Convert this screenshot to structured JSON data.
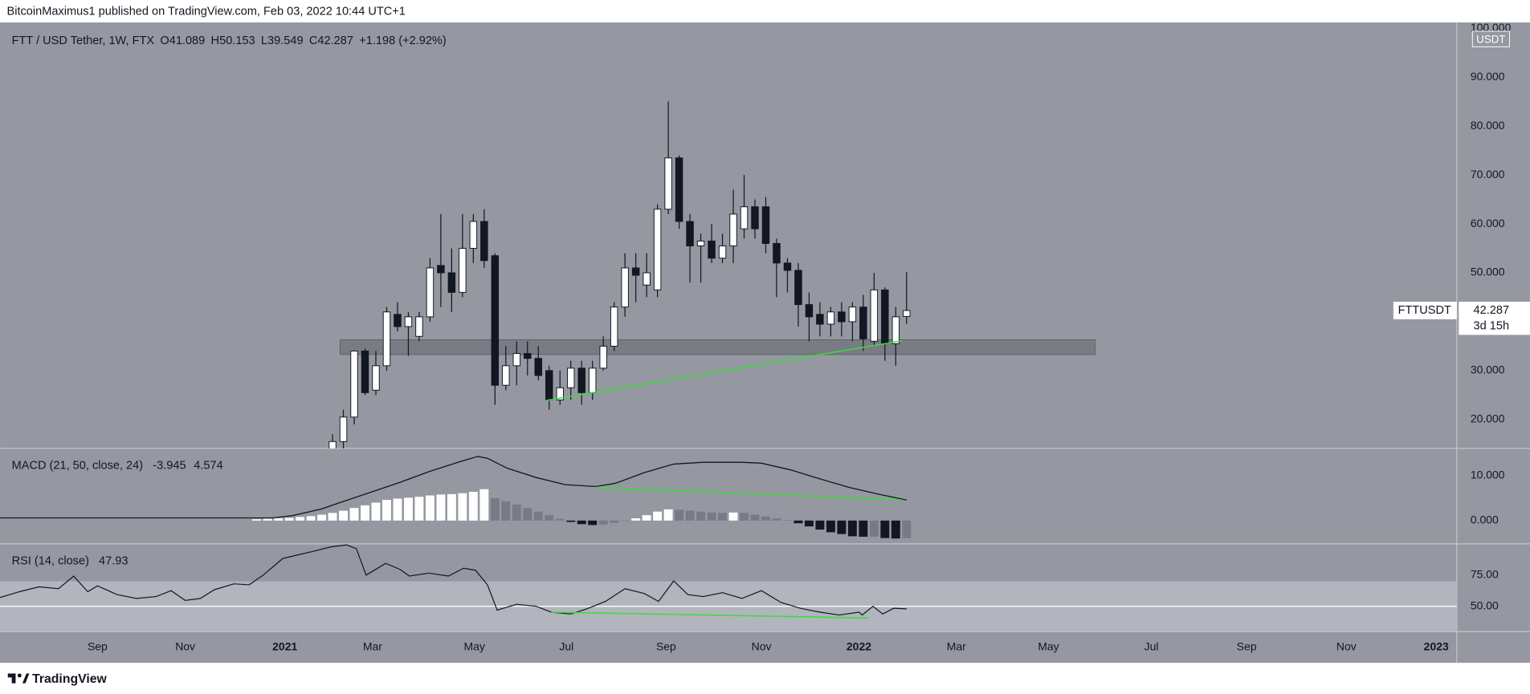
{
  "header": {
    "publisher_line": "BitcoinMaximus1 published on TradingView.com, Feb 03, 2022 10:44 UTC+1",
    "logo_text": "TradingView"
  },
  "chart_data": [
    {
      "type": "candlestick",
      "symbol": "FTT / USD Tether, 1W, FTX",
      "ohlc_labels": [
        "O",
        "H",
        "L",
        "C"
      ],
      "change": "+1.198 (+2.92%)",
      "ticker": "FTTUSDT",
      "countdown": "3d 15h",
      "unit": "USDT",
      "x": [
        31,
        32,
        33,
        34,
        35,
        36,
        37,
        38,
        39,
        40,
        41,
        42,
        43,
        44,
        45,
        46,
        47,
        48,
        49,
        50,
        51,
        52,
        53,
        54,
        55,
        56,
        57,
        58,
        59,
        60,
        61,
        62,
        63,
        64,
        65,
        66,
        67,
        68,
        69,
        70,
        71,
        72,
        73,
        74,
        75,
        76,
        77,
        78,
        79,
        80,
        81,
        82,
        83,
        84
      ],
      "open": [
        13,
        15.5,
        20.5,
        34,
        26,
        31,
        41.5,
        39,
        37,
        41,
        51.5,
        50,
        46,
        55,
        60.5,
        53.5,
        27,
        31,
        33.5,
        32.5,
        30,
        24,
        26.5,
        30.5,
        25.5,
        30.5,
        35,
        43,
        51,
        47.5,
        46.5,
        63,
        73.5,
        60.5,
        55.5,
        56.5,
        53,
        55.5,
        59,
        63.5,
        63.5,
        56,
        52,
        50.5,
        43.5,
        41.5,
        39.5,
        42,
        40,
        43,
        36,
        46.5,
        35.5,
        41.089
      ],
      "high": [
        17,
        22,
        34,
        34.5,
        34,
        43,
        44,
        42,
        42,
        53,
        62,
        55,
        62,
        62,
        63,
        54,
        35,
        36,
        36,
        35,
        31,
        30,
        32,
        32,
        32,
        37,
        44,
        54,
        54,
        54,
        64,
        85,
        74,
        62,
        58,
        60,
        58,
        67,
        70,
        65,
        65.5,
        57,
        53,
        52,
        46,
        44,
        43,
        44,
        44,
        45.5,
        50,
        47,
        43,
        50.153
      ],
      "low": [
        12,
        14,
        19,
        25,
        25,
        30,
        38,
        33,
        36,
        40,
        43,
        42,
        45,
        52,
        51,
        23,
        26,
        27,
        29,
        28,
        22,
        23,
        24,
        23,
        24,
        30,
        34,
        41,
        44,
        45,
        45,
        62,
        59,
        48,
        48,
        52,
        52,
        52,
        57,
        57,
        54,
        45,
        46,
        39,
        36,
        37,
        37,
        37,
        36,
        34,
        35,
        32,
        31,
        39.549
      ],
      "close": [
        15.5,
        20.5,
        34,
        25.5,
        31,
        42,
        39,
        41,
        41,
        51,
        50,
        46,
        55,
        60.5,
        52.5,
        27,
        31,
        33.5,
        32.5,
        29,
        24,
        26.5,
        30.5,
        25.5,
        30.5,
        35,
        43,
        51,
        49.5,
        50,
        63,
        73.5,
        60.5,
        55.5,
        56.5,
        53,
        55.5,
        62,
        63.5,
        59,
        56,
        52,
        50.5,
        43.5,
        41,
        39.5,
        42,
        40,
        43,
        36.5,
        46.5,
        35.5,
        41,
        42.287
      ],
      "up_color": "#ffffff",
      "down_color": "#131722",
      "ylim": [
        14.1,
        101.2
      ],
      "yticks": [
        {
          "value": 20,
          "label": "20.000"
        },
        {
          "value": 30,
          "label": "30.000"
        },
        {
          "value": 40,
          "label": "40.000"
        },
        {
          "value": 50,
          "label": "50.000"
        },
        {
          "value": 60,
          "label": "60.000"
        },
        {
          "value": 70,
          "label": "70.000"
        },
        {
          "value": 80,
          "label": "80.000"
        },
        {
          "value": 90,
          "label": "90.000"
        },
        {
          "value": 100,
          "label": "100.000"
        }
      ],
      "xlim": [
        0.3,
        134.8
      ],
      "xticks": [
        {
          "value": 9.3,
          "label": "Sep"
        },
        {
          "value": 17.4,
          "label": "Nov"
        },
        {
          "value": 26.6,
          "label": "2021"
        },
        {
          "value": 34.7,
          "label": "Mar"
        },
        {
          "value": 44.1,
          "label": "May"
        },
        {
          "value": 52.6,
          "label": "Jul"
        },
        {
          "value": 61.8,
          "label": "Sep"
        },
        {
          "value": 70.6,
          "label": "Nov"
        },
        {
          "value": 79.6,
          "label": "2022"
        },
        {
          "value": 88.6,
          "label": "Mar"
        },
        {
          "value": 97.1,
          "label": "May"
        },
        {
          "value": 106.6,
          "label": "Jul"
        },
        {
          "value": 115.4,
          "label": "Sep"
        },
        {
          "value": 124.6,
          "label": "Nov"
        },
        {
          "value": 132.9,
          "label": "2023"
        }
      ],
      "support_zone": {
        "x": [
          31.7,
          101.4
        ],
        "y": [
          33.3,
          36.3
        ],
        "color": "#70737b"
      },
      "trendline": {
        "x": [
          50.7,
          83.6
        ],
        "y": [
          23.9,
          36.1
        ],
        "color": "#3ddc3d"
      }
    },
    {
      "type": "macd",
      "label": "MACD (21, 50, close, 24)",
      "line": {
        "x": [
          0.3,
          25.5,
          27.3,
          30.0,
          31.8,
          34.5,
          37.2,
          39.9,
          42.6,
          44.4,
          45.3,
          47.1,
          49.8,
          52.5,
          55.3,
          57.1,
          59.8,
          62.5,
          65.2,
          68.8,
          70.6,
          73.3,
          76.0,
          78.7,
          81.4,
          84
        ],
        "values": [
          0.6,
          0.6,
          1.1,
          2.6,
          4.1,
          6.3,
          8.5,
          10.9,
          13.0,
          14.3,
          13.9,
          11.7,
          9.6,
          8.0,
          7.6,
          8.3,
          10.7,
          12.6,
          13.0,
          13.0,
          12.8,
          11.3,
          9.3,
          7.4,
          5.9,
          4.574
        ],
        "color": "#131722"
      },
      "histogram": {
        "x": [
          24,
          25,
          26,
          27,
          28,
          29,
          30,
          31,
          32,
          33,
          34,
          35,
          36,
          37,
          38,
          39,
          40,
          41,
          42,
          43,
          44,
          45,
          46,
          47,
          48,
          49,
          50,
          51,
          52,
          53,
          54,
          55,
          56,
          57,
          58,
          59,
          60,
          61,
          62,
          63,
          64,
          65,
          66,
          67,
          68,
          69,
          70,
          71,
          72,
          73,
          74,
          75,
          76,
          77,
          78,
          79,
          80,
          81,
          82,
          83,
          84
        ],
        "values": [
          0.3,
          0.4,
          0.5,
          0.6,
          0.8,
          1.0,
          1.3,
          1.7,
          2.2,
          2.8,
          3.4,
          4.0,
          4.6,
          4.9,
          5.1,
          5.3,
          5.6,
          5.8,
          5.9,
          6.1,
          6.4,
          7.0,
          5.0,
          4.3,
          3.6,
          2.8,
          2.0,
          1.2,
          0.4,
          -0.3,
          -0.8,
          -1.0,
          -0.9,
          -0.5,
          -0.1,
          0.5,
          1.2,
          2.0,
          2.5,
          2.4,
          2.2,
          2.0,
          1.8,
          1.7,
          1.8,
          1.7,
          1.3,
          0.9,
          0.5,
          0.1,
          -0.6,
          -1.3,
          -2.0,
          -2.6,
          -3.0,
          -3.5,
          -3.6,
          -3.6,
          -3.9,
          -4.0,
          -3.945
        ],
        "colors": {
          "rise_above": "#ffffff",
          "fall_above": "#787b86",
          "fall_below": "#131722",
          "rise_below": "#787b86"
        }
      },
      "ylim": [
        -5.2,
        16.1
      ],
      "yticks": [
        {
          "value": 0,
          "label": "0.000"
        },
        {
          "value": 10,
          "label": "10.000"
        }
      ],
      "trendline": {
        "x": [
          55.3,
          83.6
        ],
        "y": [
          7.4,
          4.6
        ],
        "color": "#3ddc3d"
      }
    },
    {
      "type": "rsi",
      "label": "RSI (14, close)",
      "x": [
        0.3,
        2.1,
        3.9,
        5.7,
        7.1,
        8.4,
        9.3,
        11.1,
        12.9,
        14.7,
        16.1,
        17.4,
        18.8,
        20.1,
        21.9,
        23.3,
        24.6,
        26.4,
        29.1,
        30.9,
        32.3,
        33.2,
        34.1,
        35.9,
        37.2,
        38.1,
        39.9,
        41.7,
        43.1,
        44.2,
        45.3,
        46.2,
        48.0,
        49.8,
        51.2,
        53.0,
        54.4,
        56.2,
        58.0,
        59.8,
        61.1,
        62.5,
        63.8,
        65.2,
        67.0,
        68.8,
        70.6,
        72.4,
        74.2,
        76.0,
        77.8,
        79.6,
        79.9,
        80.9,
        81.8,
        82.8,
        84
      ],
      "values": [
        57.0,
        61.7,
        65.6,
        64.1,
        74.2,
        61.7,
        66.4,
        59.4,
        56.3,
        57.8,
        62.5,
        54.7,
        56.3,
        63.3,
        68.0,
        67.2,
        75.0,
        88.3,
        93.8,
        97.7,
        99.2,
        96.1,
        75.0,
        84.4,
        79.7,
        74.2,
        76.6,
        74.2,
        80.5,
        78.9,
        67.2,
        46.9,
        51.6,
        50.0,
        45.3,
        43.8,
        47.7,
        53.9,
        64.1,
        60.2,
        53.9,
        70.3,
        59.4,
        57.8,
        60.9,
        56.3,
        62.5,
        53.1,
        48.4,
        45.3,
        43.0,
        45.3,
        43.0,
        50.0,
        43.8,
        48.4,
        47.93
      ],
      "color": "#131722",
      "ylim": [
        29.7,
        100
      ],
      "yticks": [
        {
          "value": 50,
          "label": "50.00"
        },
        {
          "value": 75,
          "label": "75.00"
        }
      ],
      "band": [
        30,
        70
      ],
      "band_color": "#b2b5bd",
      "midline": 50,
      "trendline": {
        "x": [
          51.2,
          80.5
        ],
        "y": [
          45.3,
          40.6
        ],
        "color": "#3ddc3d"
      }
    }
  ]
}
